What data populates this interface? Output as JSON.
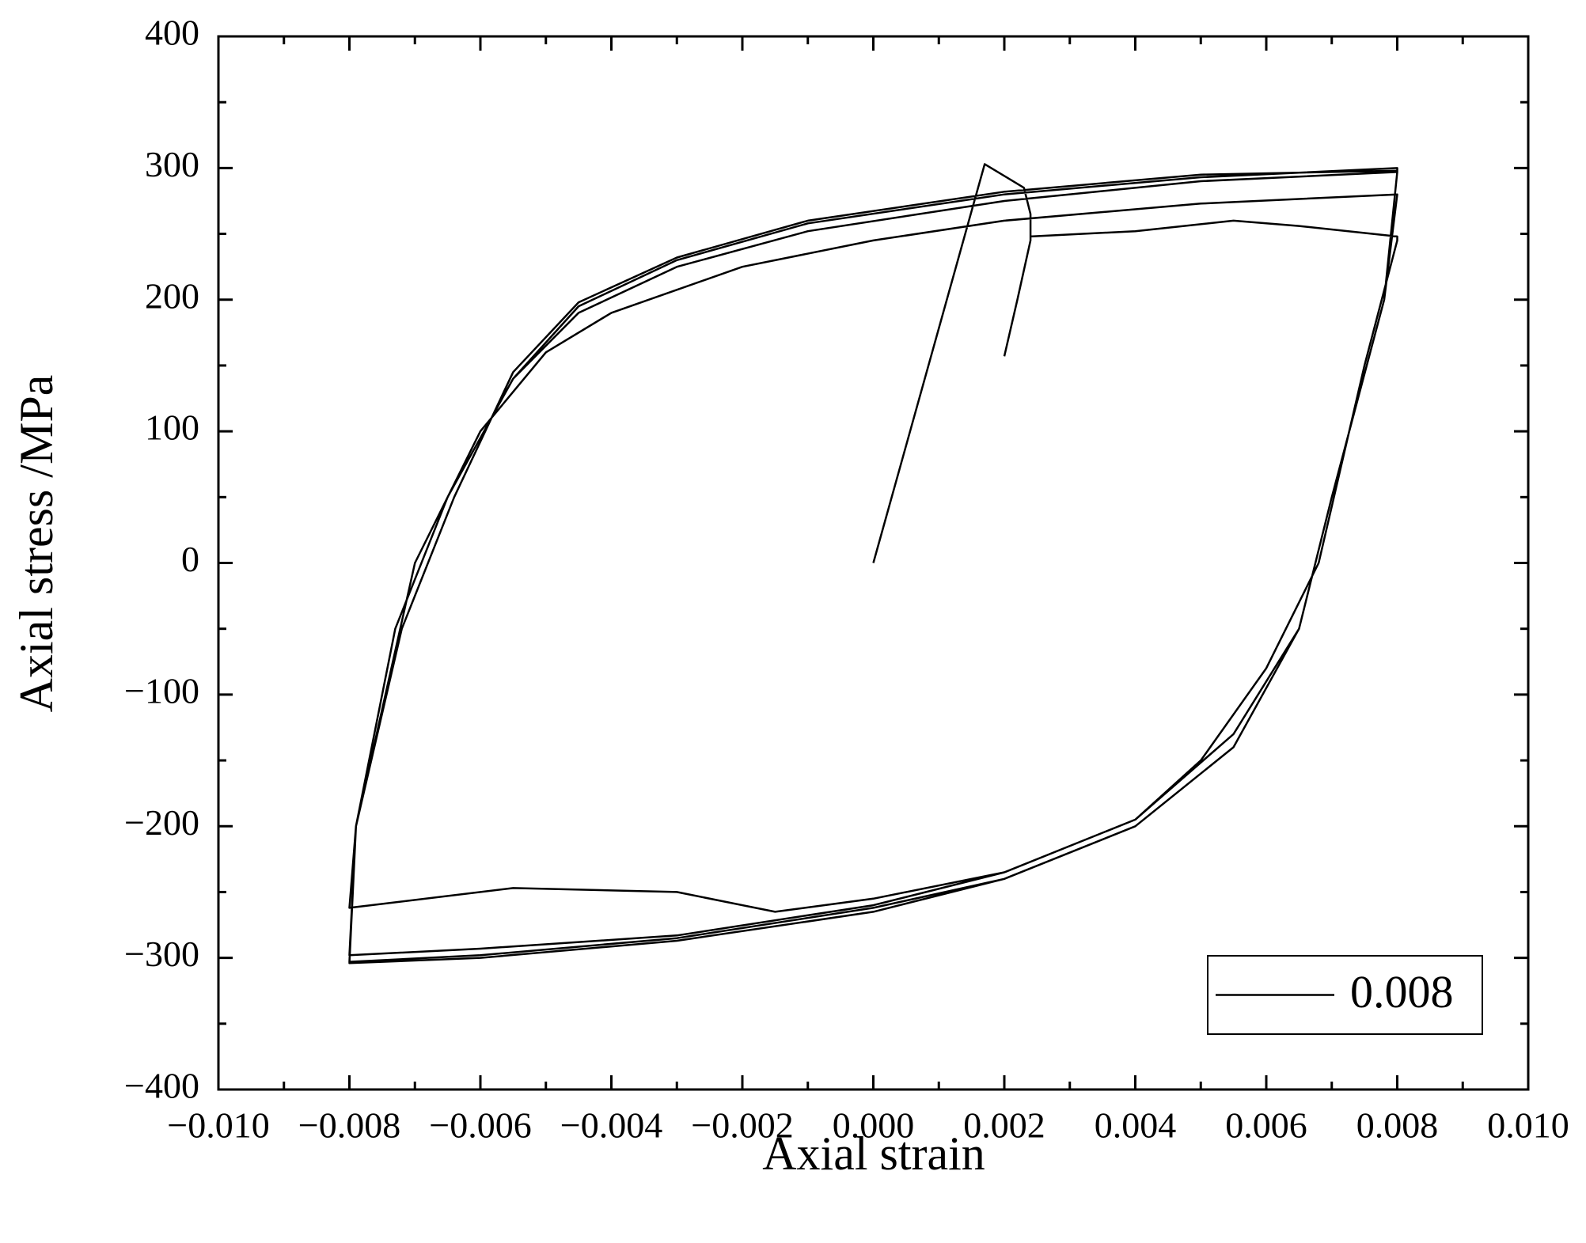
{
  "chart_data": {
    "type": "line",
    "x_label": "Axial strain",
    "y_label": "Axial stress /MPa",
    "xlim": [
      -0.01,
      0.01
    ],
    "ylim": [
      -400,
      400
    ],
    "xticks": [
      {
        "value": -0.01,
        "label": "−0.010"
      },
      {
        "value": -0.008,
        "label": "−0.008"
      },
      {
        "value": -0.006,
        "label": "−0.006"
      },
      {
        "value": -0.004,
        "label": "−0.004"
      },
      {
        "value": -0.002,
        "label": "−0.002"
      },
      {
        "value": 0,
        "label": "0.000"
      },
      0.002,
      0.004,
      0.006,
      0.008,
      {
        "value": 0.01,
        "label": "0.010"
      }
    ],
    "yticks": [
      {
        "value": -400,
        "label": "−400"
      },
      {
        "value": -300,
        "label": "−300"
      },
      {
        "value": -200,
        "label": "−200"
      },
      {
        "value": -100,
        "label": "−100"
      },
      0,
      100,
      200,
      300,
      400
    ],
    "legend": "lower right",
    "x": [
      0,
      0.0017,
      0.0023,
      0.0024,
      0.0024,
      0.0022,
      0.002,
      0.0024,
      0.0024,
      0.004,
      0.0055,
      0.0065,
      0.008,
      0.008,
      0.0075,
      0.0068,
      0.006,
      0.005,
      0.004,
      0.002,
      0,
      -0.0015,
      -0.003,
      -0.0055,
      -0.008,
      -0.0079,
      -0.007,
      -0.006,
      -0.005,
      -0.004,
      -0.002,
      0,
      0.002,
      0.005,
      0.008,
      0.0078,
      0.007,
      0.0065,
      0.0055,
      0.004,
      0.002,
      0,
      -0.003,
      -0.006,
      -0.008,
      -0.0079,
      -0.0073,
      -0.0065,
      -0.0055,
      -0.0045,
      -0.003,
      -0.001,
      0.002,
      0.005,
      0.008,
      0.0078,
      0.007,
      0.0065,
      0.0055,
      0.004,
      0.002,
      0,
      -0.003,
      -0.006,
      -0.008,
      -0.0079,
      -0.0073,
      -0.0065,
      -0.0055,
      -0.0045,
      -0.003,
      -0.001,
      0.002,
      0.005,
      0.008,
      0.008,
      0.0078,
      0.007,
      0.0065,
      0.0055,
      0.004,
      0.002,
      0,
      -0.003,
      -0.006,
      -0.008,
      -0.0079,
      -0.0072,
      -0.0064,
      -0.0055,
      -0.0045,
      -0.003,
      -0.001,
      0.002,
      0.005,
      0.008
    ],
    "series": [
      {
        "name": "0.008",
        "color": "#000000",
        "values": [
          0,
          303,
          285,
          265,
          245,
          200,
          157,
          null,
          248,
          252,
          260,
          256,
          248,
          245,
          150,
          0,
          -80,
          -150,
          -195,
          -235,
          -255,
          -265,
          -250,
          -247,
          -262,
          -200,
          0,
          100,
          160,
          190,
          225,
          245,
          260,
          273,
          280,
          200,
          50,
          -50,
          -130,
          -195,
          -235,
          -260,
          -283,
          -293,
          -298,
          -200,
          -50,
          50,
          140,
          190,
          225,
          252,
          275,
          290,
          297,
          200,
          50,
          -50,
          -140,
          -200,
          -240,
          -262,
          -285,
          -298,
          -303,
          -200,
          -50,
          50,
          140,
          195,
          230,
          258,
          280,
          293,
          300,
          297,
          200,
          50,
          -50,
          -140,
          -200,
          -240,
          -265,
          -287,
          -300,
          -304,
          -200,
          -50,
          50,
          145,
          198,
          232,
          260,
          282,
          295,
          298
        ]
      }
    ]
  }
}
